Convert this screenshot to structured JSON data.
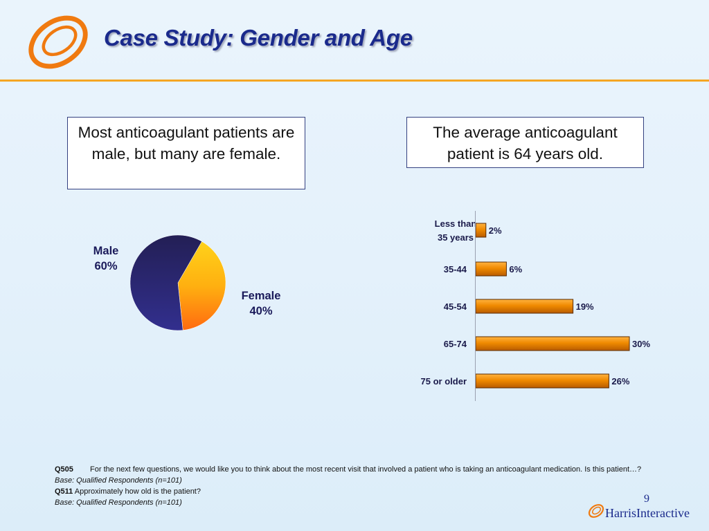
{
  "header": {
    "title": "Case Study:  Gender and Age"
  },
  "callouts": {
    "left": "Most anticoagulant patients are male, but many are female.",
    "right": "The average anticoagulant patient is 64 years old."
  },
  "colors": {
    "accent_rule": "#f5a623",
    "title": "#1a2a8c",
    "male_slice": "#2b2a7a",
    "female_slice": "#ff8a10",
    "bar": "#f08a00",
    "bar_outline": "#5a2a00"
  },
  "icons": {
    "logo": "harris-orbit-logo",
    "brand": "harris-interactive-logo"
  },
  "chart_data": [
    {
      "type": "pie",
      "categories": [
        "Male",
        "Female"
      ],
      "values": [
        60,
        40
      ],
      "labels": {
        "male": "Male",
        "male_pct": "60%",
        "female": "Female",
        "female_pct": "40%"
      }
    },
    {
      "type": "bar",
      "orientation": "horizontal",
      "categories": [
        "Less than 35 years",
        "35-44",
        "45-54",
        "65-74",
        "75 or older"
      ],
      "category_lines": [
        [
          "Less than",
          "35 years"
        ],
        [
          "35-44"
        ],
        [
          "45-54"
        ],
        [
          "65-74"
        ],
        [
          "75 or older"
        ]
      ],
      "values": [
        2,
        6,
        19,
        30,
        26
      ],
      "value_labels": [
        "2%",
        "6%",
        "19%",
        "30%",
        "26%"
      ],
      "unit": "%",
      "xlim": [
        0,
        30
      ],
      "grid": false
    }
  ],
  "footnotes": {
    "q505_code": "Q505",
    "q505_text": "For the next few questions, we would like you to think about the most recent visit that involved a patient who is taking an anticoagulant medication.  Is this patient…?",
    "base1": "Base:   Qualified Respondents (n=101)",
    "q511_code": "Q511",
    "q511_text": "Approximately how old is the patient?",
    "base2": "Base:   Qualified Respondents (n=101)"
  },
  "page_number": "9",
  "brand": {
    "part1": "Harris",
    "part2": "Interactive"
  }
}
